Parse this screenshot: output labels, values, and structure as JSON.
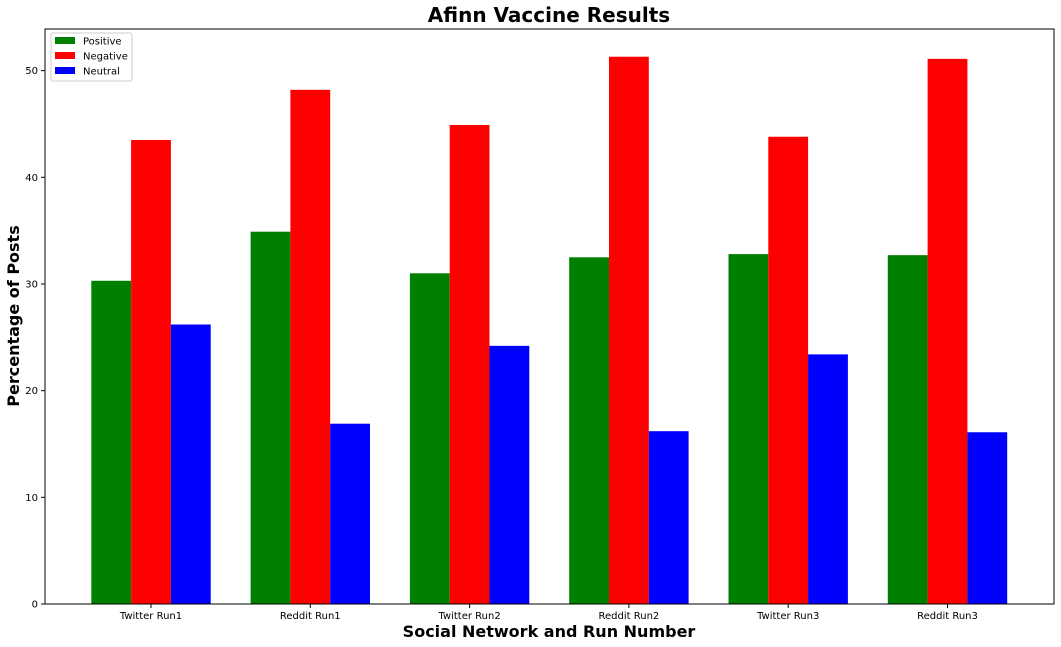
{
  "chart_data": {
    "type": "bar",
    "title": "Afinn Vaccine Results",
    "xlabel": "Social Network and Run Number",
    "ylabel": "Percentage of Posts",
    "categories": [
      "Twitter Run1",
      "Reddit Run1",
      "Twitter Run2",
      "Reddit Run2",
      "Twitter Run3",
      "Reddit Run3"
    ],
    "series": [
      {
        "name": "Positive",
        "color": "#008000",
        "values": [
          30.3,
          34.9,
          31.0,
          32.5,
          32.8,
          32.7
        ]
      },
      {
        "name": "Negative",
        "color": "#ff0000",
        "values": [
          43.5,
          48.2,
          44.9,
          51.3,
          43.8,
          51.1
        ]
      },
      {
        "name": "Neutral",
        "color": "#0000ff",
        "values": [
          26.2,
          16.9,
          24.2,
          16.2,
          23.4,
          16.1
        ]
      }
    ],
    "yticks": [
      0,
      10,
      20,
      30,
      40,
      50
    ],
    "ylim": [
      0,
      53.9
    ],
    "grid": false,
    "legend_position": "top-left"
  }
}
